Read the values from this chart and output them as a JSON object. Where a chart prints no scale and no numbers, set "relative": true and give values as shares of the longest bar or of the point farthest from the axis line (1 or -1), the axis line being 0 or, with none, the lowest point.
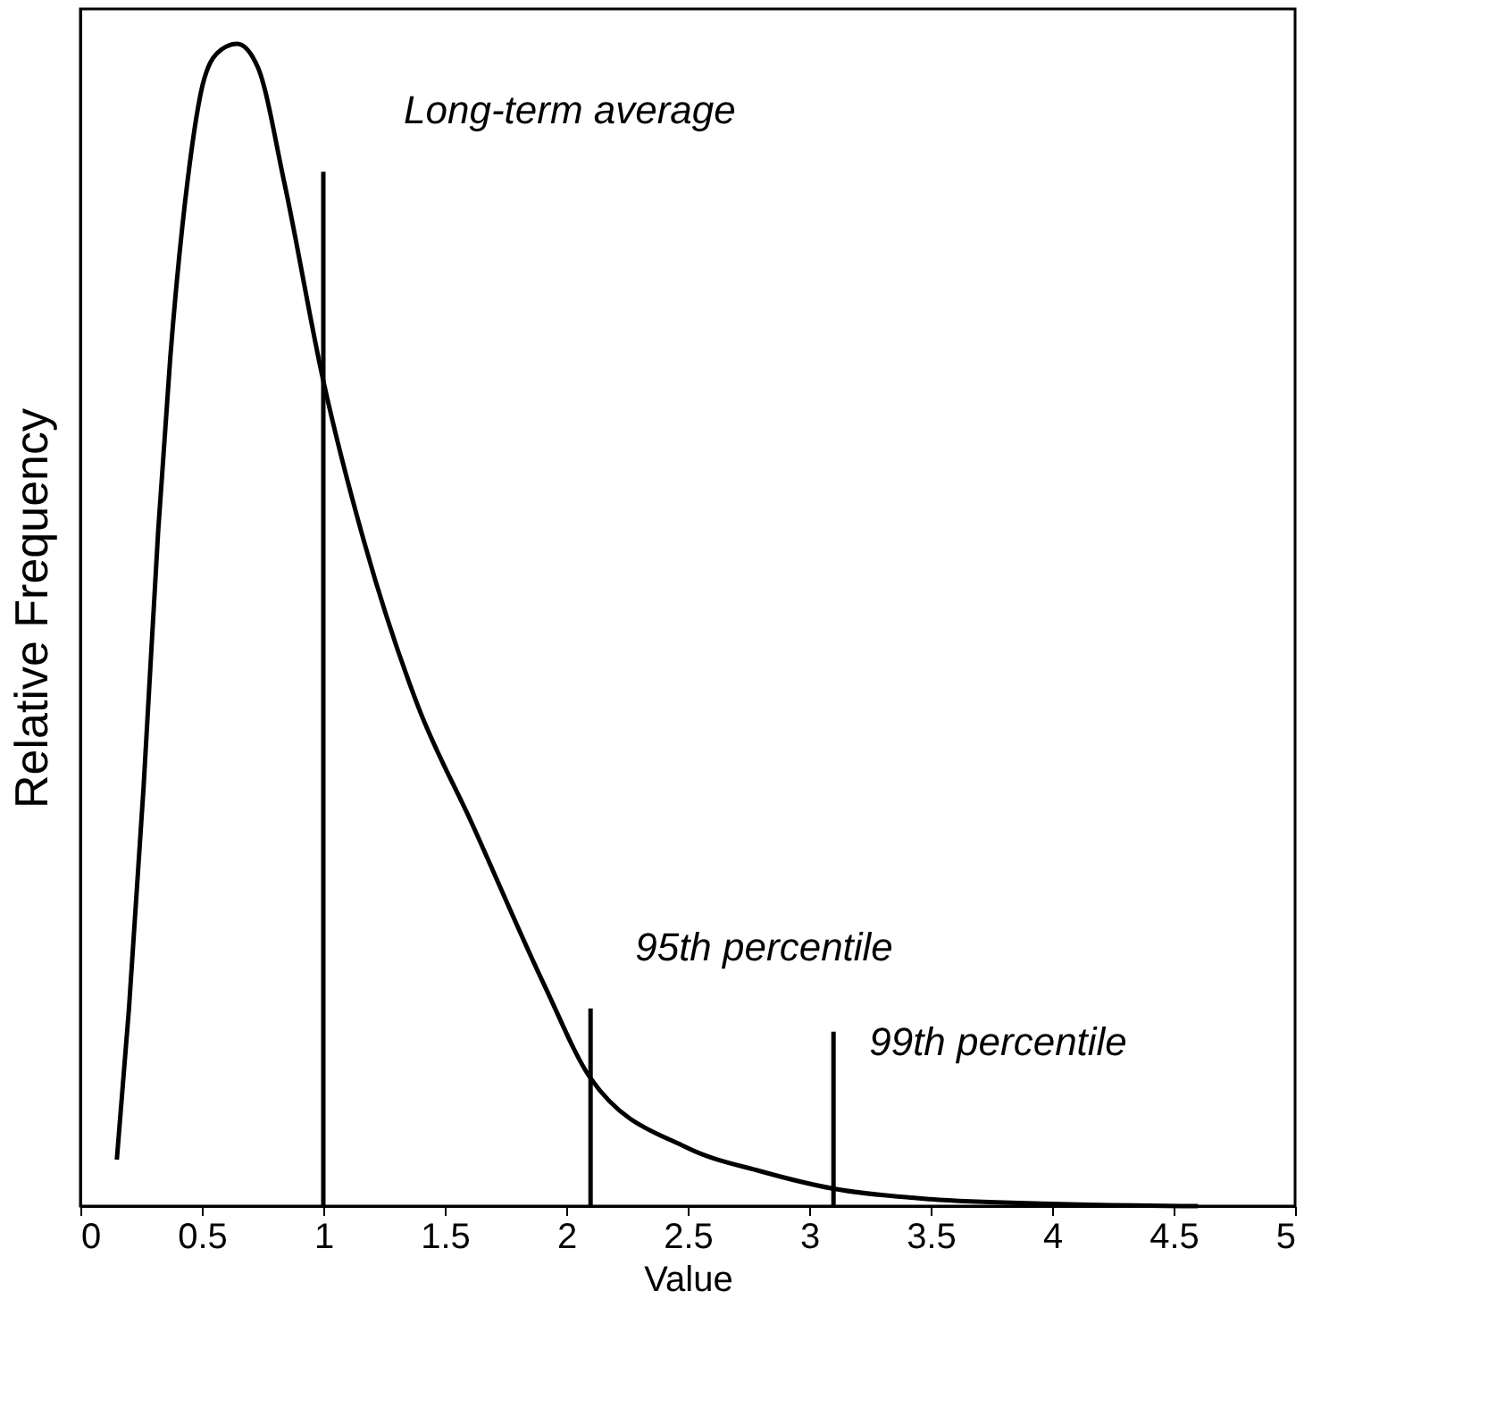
{
  "chart_data": {
    "type": "line",
    "xlabel": "Value",
    "ylabel": "Relative Frequency",
    "relative": true,
    "xlim": [
      0,
      5
    ],
    "xticks": [
      0,
      0.5,
      1,
      1.5,
      2,
      2.5,
      3,
      3.5,
      4,
      4.5,
      5
    ],
    "series": [
      {
        "color": "#000000",
        "x": [
          0.15,
          0.2,
          0.26,
          0.32,
          0.37,
          0.44,
          0.51,
          0.58,
          0.645,
          0.73,
          0.84,
          1.0,
          1.17,
          1.39,
          1.61,
          1.91,
          2.1,
          2.5,
          2.8,
          3.1,
          3.5,
          4.0,
          4.6
        ],
        "values": [
          0.04,
          0.17,
          0.36,
          0.58,
          0.73,
          0.88,
          0.97,
          0.995,
          1.0,
          0.98,
          0.88,
          0.71,
          0.57,
          0.43,
          0.33,
          0.19,
          0.11,
          0.05,
          0.03,
          0.015,
          0.006,
          0.002,
          0.0
        ]
      }
    ],
    "ref_lines": [
      {
        "axis": "x",
        "value": 1.0
      },
      {
        "axis": "x",
        "value": 2.1
      },
      {
        "axis": "x",
        "value": 3.1
      }
    ],
    "annotations": [
      {
        "text": "Long-term average",
        "x": 1.0,
        "y": 0.89
      },
      {
        "text": "95th percentile",
        "x": 2.1,
        "y": 0.17
      },
      {
        "text": "99th percentile",
        "x": 3.1,
        "y": 0.15
      }
    ]
  }
}
